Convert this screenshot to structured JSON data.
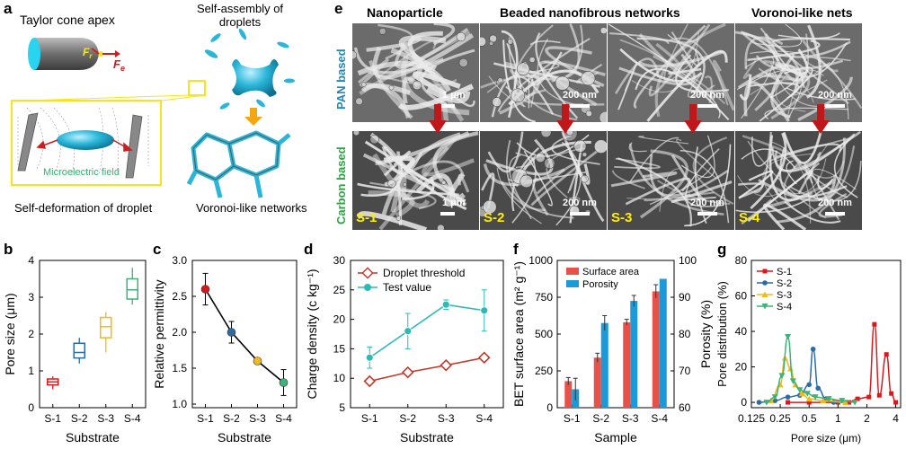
{
  "panels": {
    "a": "a",
    "b": "b",
    "c": "c",
    "d": "d",
    "e": "e",
    "f": "f",
    "g": "g"
  },
  "schematic": {
    "taylor_cone": "Taylor cone apex",
    "self_assembly_line1": "Self-assembly of",
    "self_assembly_line2": "droplets",
    "microelectric": "Microelectric field",
    "self_deformation": "Self-deformation of droplet",
    "voronoi_networks": "Voronoi-like networks",
    "force_r": "F",
    "force_r_sub": "r",
    "force_e": "F",
    "force_e_sub": "e",
    "colors": {
      "cyan": "#29b6d9",
      "yellow": "#f5e51e",
      "red": "#cc1f1f",
      "gray": "#808080",
      "green": "#2bb673",
      "orange": "#f3a712"
    }
  },
  "sem": {
    "col_headers": [
      "Nanoparticle",
      "Beaded nanofibrous networks",
      "Voronoi-like nets"
    ],
    "row_labels": [
      "PAN based",
      "Carbon based"
    ],
    "row_label_colors": [
      "#1e88b9",
      "#2aa640"
    ],
    "top_scales": [
      "1 μm",
      "200 nm",
      "200 nm",
      "200 nm"
    ],
    "bottom_scales": [
      "1 μm",
      "200 nm",
      "200 nm",
      "200 nm"
    ],
    "samples": [
      "S-1",
      "S-2",
      "S-3",
      "S-4"
    ]
  },
  "chart_data": [
    {
      "panel": "b",
      "type": "box",
      "categories": [
        "S-1",
        "S-2",
        "S-3",
        "S-4"
      ],
      "ylabel": "Pore size (μm)",
      "xlabel": "Substrate",
      "ylim": [
        0,
        4
      ],
      "yticks": [
        0,
        1,
        2,
        3,
        4
      ],
      "colors": [
        "#d7191c",
        "#2b6ca3",
        "#f3b81a",
        "#3cb37a"
      ],
      "boxes": [
        {
          "min": 0.5,
          "q1": 0.62,
          "median": 0.7,
          "q3": 0.78,
          "max": 0.85
        },
        {
          "min": 1.2,
          "q1": 1.35,
          "median": 1.5,
          "q3": 1.75,
          "max": 1.9
        },
        {
          "min": 1.5,
          "q1": 1.9,
          "median": 2.2,
          "q3": 2.45,
          "max": 2.6
        },
        {
          "min": 2.8,
          "q1": 2.95,
          "median": 3.2,
          "q3": 3.5,
          "max": 3.8
        }
      ]
    },
    {
      "panel": "c",
      "type": "line",
      "categories": [
        "S-1",
        "S-2",
        "S-3",
        "S-4"
      ],
      "values": [
        2.6,
        2.0,
        1.6,
        1.3
      ],
      "errors": [
        0.22,
        0.15,
        0.03,
        0.18
      ],
      "point_colors": [
        "#d7191c",
        "#2b6ca3",
        "#f3b81a",
        "#3cb37a"
      ],
      "ylabel": "Relative permittivity",
      "xlabel": "Substrate",
      "ylim": [
        0.95,
        3.0
      ],
      "yticks": [
        "1.0",
        "1.5",
        "2.0",
        "2.5",
        "3.0"
      ]
    },
    {
      "panel": "d",
      "type": "line",
      "categories": [
        "S-1",
        "S-2",
        "S-3",
        "S-4"
      ],
      "ylabel": "Charge density (c kg⁻¹)",
      "xlabel": "Substrate",
      "ylim": [
        5,
        30
      ],
      "yticks": [
        5,
        10,
        15,
        20,
        25,
        30
      ],
      "series": [
        {
          "name": "Droplet threshold",
          "values": [
            9.5,
            11.0,
            12.2,
            13.5
          ],
          "errors": [
            0,
            0,
            0,
            0
          ],
          "color": "#c0392b"
        },
        {
          "name": "Test value",
          "values": [
            13.5,
            18.0,
            22.5,
            21.5
          ],
          "errors": [
            1.8,
            3.0,
            0.8,
            3.5
          ],
          "color": "#2bbbb6"
        }
      ]
    },
    {
      "panel": "f",
      "type": "bar",
      "categories": [
        "S-1",
        "S-2",
        "S-3",
        "S-4"
      ],
      "ylabel": "BET surface area (m² g⁻¹)",
      "y2label": "Porosity (%)",
      "xlabel": "Sample",
      "ylim": [
        0,
        1000
      ],
      "y2lim": [
        60,
        100
      ],
      "yticks": [
        0,
        250,
        500,
        750,
        1000
      ],
      "y2ticks": [
        60,
        70,
        80,
        90,
        100
      ],
      "series": [
        {
          "name": "Surface area",
          "axis": "left",
          "values": [
            180,
            340,
            580,
            790
          ],
          "errors": [
            25,
            30,
            20,
            45
          ],
          "color": "#e8504a"
        },
        {
          "name": "Porosity",
          "axis": "right",
          "values": [
            65,
            83,
            89,
            95
          ],
          "errors": [
            3,
            2,
            1.5,
            0
          ],
          "color": "#1a9bd7"
        }
      ]
    },
    {
      "panel": "g",
      "type": "scatter",
      "xscale": "log2",
      "xlabel": "Pore size (μm)",
      "ylabel": "Pore distribution (%)",
      "xlim": [
        0.125,
        4.5
      ],
      "ylim": [
        -3,
        80
      ],
      "xticks": [
        "0.125",
        "0.25",
        "0.5",
        "1",
        "2",
        "4"
      ],
      "yticks": [
        0,
        20,
        40,
        60,
        80
      ],
      "series": [
        {
          "name": "S-1",
          "color": "#d7191c",
          "marker": "square",
          "points": [
            [
              0.3,
              0
            ],
            [
              0.5,
              0
            ],
            [
              1.0,
              0
            ],
            [
              1.3,
              0
            ],
            [
              1.6,
              2
            ],
            [
              2.1,
              3
            ],
            [
              2.4,
              44
            ],
            [
              2.7,
              4
            ],
            [
              3.2,
              27
            ],
            [
              3.6,
              5
            ],
            [
              4.0,
              0
            ]
          ]
        },
        {
          "name": "S-2",
          "color": "#2b6ca3",
          "marker": "circle",
          "points": [
            [
              0.15,
              0
            ],
            [
              0.22,
              1
            ],
            [
              0.3,
              3
            ],
            [
              0.4,
              4
            ],
            [
              0.5,
              10
            ],
            [
              0.55,
              30
            ],
            [
              0.62,
              8
            ],
            [
              0.75,
              2
            ],
            [
              0.9,
              0
            ],
            [
              1.2,
              0
            ]
          ]
        },
        {
          "name": "S-3",
          "color": "#f3b81a",
          "marker": "triangle-up",
          "points": [
            [
              0.2,
              1
            ],
            [
              0.25,
              10
            ],
            [
              0.28,
              25
            ],
            [
              0.32,
              19
            ],
            [
              0.36,
              10
            ],
            [
              0.42,
              5
            ],
            [
              0.5,
              2
            ],
            [
              0.7,
              1
            ],
            [
              1.2,
              0
            ]
          ]
        },
        {
          "name": "S-4",
          "color": "#3cb37a",
          "marker": "triangle-down",
          "points": [
            [
              0.18,
              0
            ],
            [
              0.22,
              3
            ],
            [
              0.26,
              15
            ],
            [
              0.3,
              37
            ],
            [
              0.34,
              12
            ],
            [
              0.4,
              7
            ],
            [
              0.48,
              5
            ],
            [
              0.58,
              3
            ],
            [
              0.8,
              2
            ],
            [
              1.1,
              1
            ],
            [
              1.5,
              0
            ]
          ]
        }
      ]
    }
  ]
}
